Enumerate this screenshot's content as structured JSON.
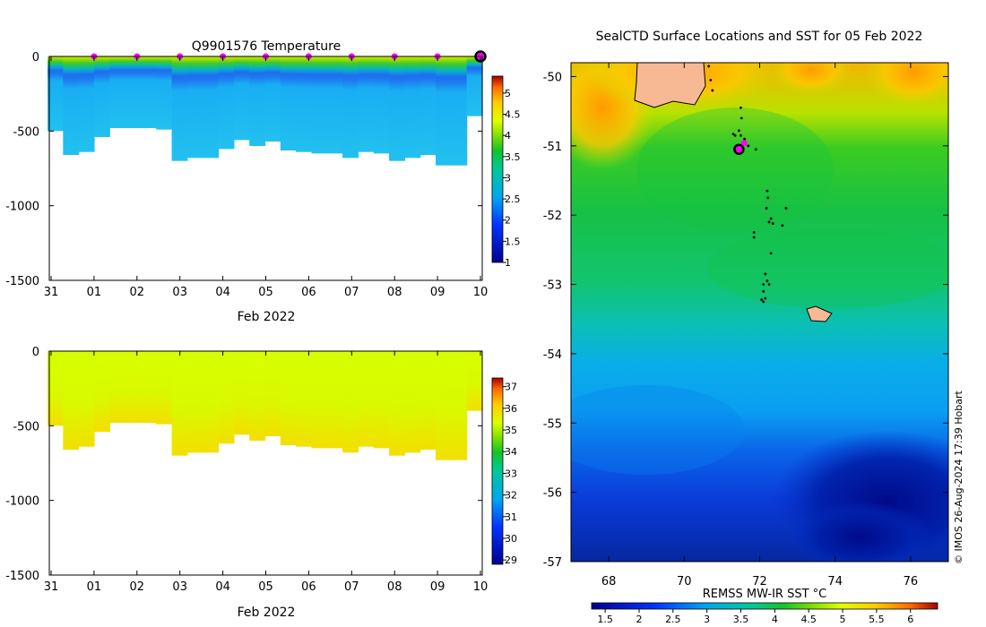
{
  "chart_data": [
    {
      "type": "heatmap",
      "title": "Q9901576  Temperature",
      "xlabel": "Feb 2022",
      "ylabel": "",
      "xticks": [
        "31",
        "01",
        "02",
        "03",
        "04",
        "05",
        "06",
        "07",
        "08",
        "09",
        "10"
      ],
      "yticks": [
        "0",
        "-500",
        "-1000",
        "-1500"
      ],
      "ylim": [
        -1500,
        0
      ],
      "colorbar_ticks": [
        "1",
        "1.5",
        "2",
        "2.5",
        "3",
        "3.5",
        "4",
        "4.5",
        "5"
      ],
      "colorbar_range": [
        1,
        5.4
      ],
      "profile_depths": [
        500,
        660,
        640,
        540,
        480,
        480,
        480,
        490,
        700,
        680,
        680,
        620,
        560,
        600,
        570,
        630,
        640,
        650,
        650,
        680,
        640,
        650,
        700,
        680,
        660,
        730,
        730,
        400
      ],
      "surface_markers_days": [
        1,
        2,
        3,
        4,
        5,
        6,
        7,
        8,
        9
      ],
      "current_marker_day": 10
    },
    {
      "type": "heatmap",
      "title": "",
      "xlabel": "Feb 2022",
      "ylabel": "",
      "xticks": [
        "31",
        "01",
        "02",
        "03",
        "04",
        "05",
        "06",
        "07",
        "08",
        "09",
        "10"
      ],
      "yticks": [
        "0",
        "-500",
        "-1000",
        "-1500"
      ],
      "ylim": [
        -1500,
        0
      ],
      "colorbar_ticks": [
        "29",
        "30",
        "31",
        "32",
        "33",
        "34",
        "35",
        "36",
        "37"
      ],
      "colorbar_range": [
        28.8,
        37.4
      ],
      "surface_value": 34.3,
      "deep_value": 34.7
    },
    {
      "type": "heatmap",
      "title": "SealCTD Surface Locations and SST for 05 Feb 2022",
      "xlabel": "REMSS MW-IR SST °C",
      "ylabel": "",
      "xticks": [
        "68",
        "70",
        "72",
        "74",
        "76"
      ],
      "yticks": [
        "-50",
        "-51",
        "-52",
        "-53",
        "-54",
        "-55",
        "-56",
        "-57"
      ],
      "xlim": [
        67,
        77
      ],
      "ylim": [
        -57,
        -49.8
      ],
      "colorbar_ticks": [
        "1.5",
        "2",
        "2.5",
        "3",
        "3.5",
        "4",
        "4.5",
        "5",
        "5.5",
        "6"
      ],
      "colorbar_range": [
        1.3,
        6.4
      ],
      "current_position": {
        "lon": 71.45,
        "lat": -51.05
      },
      "track_points": [
        [
          70.65,
          -49.85
        ],
        [
          70.7,
          -50.05
        ],
        [
          70.75,
          -50.2
        ],
        [
          71.5,
          -50.45
        ],
        [
          71.52,
          -50.6
        ],
        [
          71.45,
          -50.78
        ],
        [
          71.5,
          -50.85
        ],
        [
          71.35,
          -50.85
        ],
        [
          71.3,
          -50.83
        ],
        [
          71.6,
          -50.9
        ],
        [
          71.7,
          -51.0
        ],
        [
          71.9,
          -51.05
        ],
        [
          72.2,
          -51.65
        ],
        [
          72.22,
          -51.75
        ],
        [
          72.18,
          -51.9
        ],
        [
          72.7,
          -51.9
        ],
        [
          72.3,
          -52.05
        ],
        [
          72.25,
          -52.1
        ],
        [
          72.35,
          -52.12
        ],
        [
          72.6,
          -52.15
        ],
        [
          71.85,
          -52.25
        ],
        [
          71.85,
          -52.32
        ],
        [
          72.3,
          -52.55
        ],
        [
          72.15,
          -52.85
        ],
        [
          72.2,
          -52.95
        ],
        [
          72.1,
          -53.0
        ],
        [
          72.25,
          -53.0
        ],
        [
          72.1,
          -53.1
        ],
        [
          72.15,
          -53.2
        ],
        [
          72.05,
          -53.22
        ],
        [
          72.1,
          -53.25
        ]
      ],
      "credit": "© IMOS 26-Aug-2024 17:39 Hobart"
    }
  ]
}
